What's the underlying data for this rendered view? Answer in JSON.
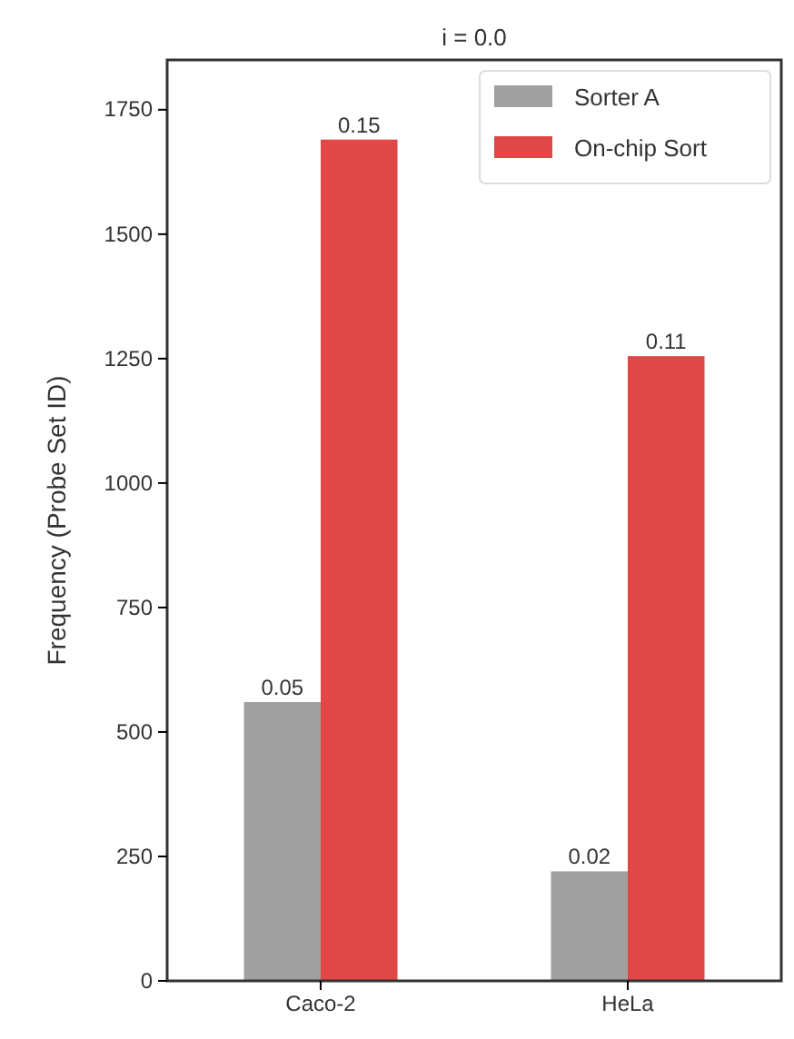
{
  "chart_data": {
    "type": "bar",
    "title": "i = 0.0",
    "ylabel": "Frequency (Probe Set ID)",
    "categories": [
      "Caco-2",
      "HeLa"
    ],
    "series": [
      {
        "name": "Sorter A",
        "color": "#a0a0a0",
        "values": [
          560,
          220
        ]
      },
      {
        "name": "On-chip Sort",
        "color": "#e04848",
        "values": [
          1690,
          1255
        ]
      }
    ],
    "annotations": [
      {
        "text": "0.05",
        "x": "Caco-2",
        "y": 560
      },
      {
        "text": "0.15",
        "x": "Caco-2",
        "y": 1690
      },
      {
        "text": "0.02",
        "x": "HeLa",
        "y": 220
      },
      {
        "text": "0.11",
        "x": "HeLa",
        "y": 1255
      }
    ],
    "ylim": [
      0,
      1850
    ],
    "yticks": [
      0,
      250,
      500,
      750,
      1000,
      1250,
      1500,
      1750
    ],
    "legend": "top right",
    "grid": false
  }
}
